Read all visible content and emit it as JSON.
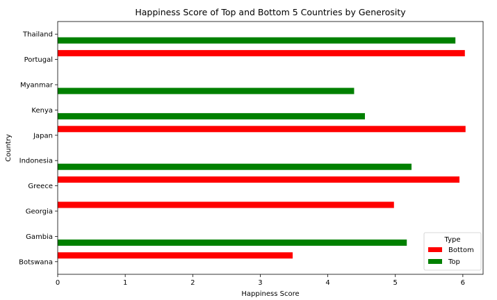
{
  "chart_data": {
    "type": "bar",
    "orientation": "horizontal",
    "title": "Happiness Score of Top and Bottom 5 Countries by Generosity",
    "xlabel": "Happiness Score",
    "ylabel": "Country",
    "xlim": [
      0,
      6.3
    ],
    "xticks": [
      0,
      1,
      2,
      3,
      4,
      5,
      6
    ],
    "grid": false,
    "categories": [
      "Botswana",
      "Gambia",
      "Georgia",
      "Greece",
      "Indonesia",
      "Japan",
      "Kenya",
      "Myanmar",
      "Portugal",
      "Thailand"
    ],
    "legend": {
      "title": "Type",
      "placement": "lower-right",
      "entries": [
        {
          "label": "Bottom",
          "color": "#ff0000"
        },
        {
          "label": "Top",
          "color": "#008000"
        }
      ]
    },
    "series": [
      {
        "name": "Bottom",
        "color": "#ff0000",
        "values": [
          3.48,
          null,
          4.98,
          5.95,
          null,
          6.04,
          null,
          null,
          6.03,
          null
        ]
      },
      {
        "name": "Top",
        "color": "#008000",
        "values": [
          null,
          5.17,
          null,
          null,
          5.24,
          null,
          4.55,
          4.39,
          null,
          5.89
        ]
      }
    ]
  }
}
